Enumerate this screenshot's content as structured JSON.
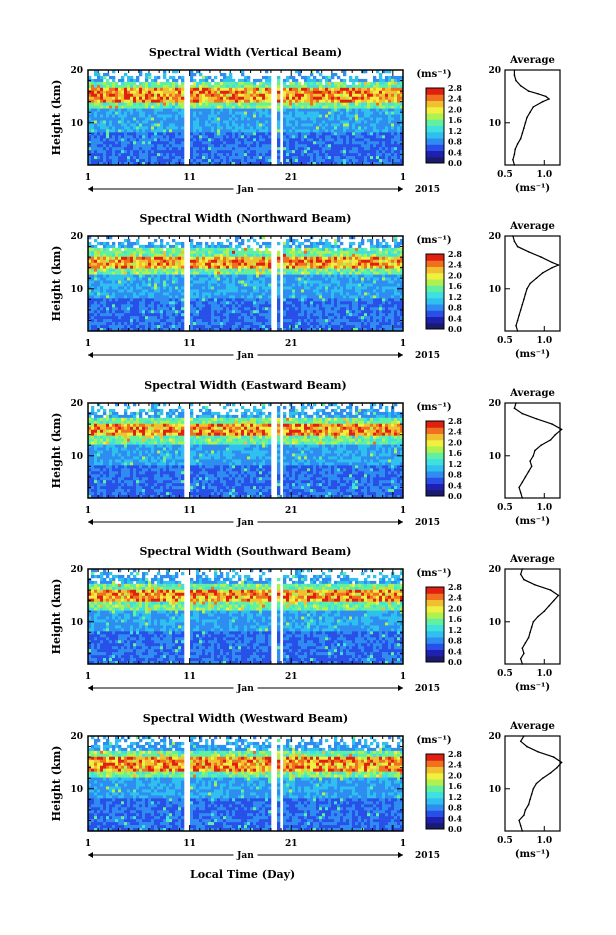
{
  "figure": {
    "bottom_xlabel": "Local Time (Day)",
    "colorbar_unit": "(ms⁻¹)",
    "avg_title": "Average",
    "avg_xlabel": "(ms⁻¹)",
    "ylabel": "Height (km)",
    "month_label": "Jan",
    "year_label": "2015"
  },
  "colors": {
    "colormap": [
      "#1a1a6e",
      "#2020b0",
      "#2850e8",
      "#2f8cf0",
      "#2fc0f0",
      "#40e0e0",
      "#60f0a0",
      "#b0f050",
      "#f0f040",
      "#f0c030",
      "#f07020",
      "#e02010"
    ]
  },
  "chart_data": [
    {
      "type": "heatmap",
      "title": "Spectral Width (Vertical Beam)",
      "ylabel": "Height (km)",
      "xlabel": "Jan",
      "x_tick_labels": [
        "1",
        "11",
        "21",
        "1"
      ],
      "y_tick_labels": [
        "10",
        "20"
      ],
      "ylim": [
        2,
        20
      ],
      "colorbar_ticks": [
        "0.0",
        "0.4",
        "0.8",
        "1.2",
        "1.6",
        "2.0",
        "2.4",
        "2.8"
      ],
      "colorbar_range": [
        0.0,
        2.8
      ],
      "year": "2015",
      "average": {
        "title": "Average",
        "xlabel": "(ms⁻¹)",
        "x_tick_labels": [
          "0.5",
          "1.0"
        ],
        "y_tick_labels": [
          "10",
          "20"
        ],
        "xlim": [
          0.5,
          1.2
        ],
        "profile": [
          [
            0.62,
            2
          ],
          [
            0.6,
            3
          ],
          [
            0.62,
            4
          ],
          [
            0.63,
            5
          ],
          [
            0.66,
            6
          ],
          [
            0.7,
            7
          ],
          [
            0.72,
            8
          ],
          [
            0.74,
            9
          ],
          [
            0.76,
            10
          ],
          [
            0.78,
            11
          ],
          [
            0.82,
            12
          ],
          [
            0.86,
            13
          ],
          [
            0.98,
            14
          ],
          [
            1.06,
            14.5
          ],
          [
            1.02,
            15
          ],
          [
            0.92,
            15.5
          ],
          [
            0.8,
            16
          ],
          [
            0.7,
            17
          ],
          [
            0.64,
            18
          ],
          [
            0.62,
            19
          ],
          [
            0.62,
            20
          ]
        ]
      }
    },
    {
      "type": "heatmap",
      "title": "Spectral Width (Northward Beam)",
      "ylabel": "Height (km)",
      "xlabel": "Jan",
      "x_tick_labels": [
        "1",
        "11",
        "21",
        "1"
      ],
      "y_tick_labels": [
        "10",
        "20"
      ],
      "ylim": [
        2,
        20
      ],
      "colorbar_ticks": [
        "0.0",
        "0.4",
        "0.8",
        "1.2",
        "1.6",
        "2.0",
        "2.4",
        "2.8"
      ],
      "colorbar_range": [
        0.0,
        2.8
      ],
      "year": "2015",
      "average": {
        "title": "Average",
        "xlabel": "(ms⁻¹)",
        "x_tick_labels": [
          "0.5",
          "1.0"
        ],
        "y_tick_labels": [
          "10",
          "20"
        ],
        "xlim": [
          0.5,
          1.2
        ],
        "profile": [
          [
            0.66,
            2
          ],
          [
            0.64,
            3
          ],
          [
            0.66,
            4
          ],
          [
            0.68,
            5
          ],
          [
            0.7,
            6
          ],
          [
            0.72,
            7
          ],
          [
            0.74,
            8
          ],
          [
            0.76,
            9
          ],
          [
            0.78,
            10
          ],
          [
            0.82,
            11
          ],
          [
            0.9,
            12
          ],
          [
            0.98,
            13
          ],
          [
            1.1,
            14
          ],
          [
            1.18,
            14.5
          ],
          [
            1.1,
            15
          ],
          [
            0.96,
            16
          ],
          [
            0.8,
            17
          ],
          [
            0.66,
            18
          ],
          [
            0.62,
            19
          ],
          [
            0.6,
            20
          ]
        ]
      }
    },
    {
      "type": "heatmap",
      "title": "Spectral Width (Eastward Beam)",
      "ylabel": "Height (km)",
      "xlabel": "Jan",
      "x_tick_labels": [
        "1",
        "11",
        "21",
        "1"
      ],
      "y_tick_labels": [
        "10",
        "20"
      ],
      "ylim": [
        2,
        20
      ],
      "colorbar_ticks": [
        "0.0",
        "0.4",
        "0.8",
        "1.2",
        "1.6",
        "2.0",
        "2.4",
        "2.8"
      ],
      "colorbar_range": [
        0.0,
        2.8
      ],
      "year": "2015",
      "average": {
        "title": "Average",
        "xlabel": "(ms⁻¹)",
        "x_tick_labels": [
          "0.5",
          "1.0"
        ],
        "y_tick_labels": [
          "10",
          "20"
        ],
        "xlim": [
          0.5,
          1.2
        ],
        "profile": [
          [
            0.72,
            2
          ],
          [
            0.7,
            3
          ],
          [
            0.68,
            4
          ],
          [
            0.72,
            5
          ],
          [
            0.76,
            6
          ],
          [
            0.8,
            7
          ],
          [
            0.84,
            8
          ],
          [
            0.82,
            9
          ],
          [
            0.86,
            10
          ],
          [
            0.88,
            11
          ],
          [
            0.96,
            12
          ],
          [
            1.08,
            13
          ],
          [
            1.14,
            14
          ],
          [
            1.22,
            15
          ],
          [
            1.1,
            16
          ],
          [
            0.9,
            17
          ],
          [
            0.72,
            18
          ],
          [
            0.62,
            19
          ],
          [
            0.64,
            20
          ]
        ]
      }
    },
    {
      "type": "heatmap",
      "title": "Spectral Width (Southward Beam)",
      "ylabel": "Height (km)",
      "xlabel": "Jan",
      "x_tick_labels": [
        "1",
        "11",
        "21",
        "1"
      ],
      "y_tick_labels": [
        "10",
        "20"
      ],
      "ylim": [
        2,
        20
      ],
      "colorbar_ticks": [
        "0.0",
        "0.4",
        "0.8",
        "1.2",
        "1.6",
        "2.0",
        "2.4",
        "2.8"
      ],
      "colorbar_range": [
        0.0,
        2.8
      ],
      "year": "2015",
      "average": {
        "title": "Average",
        "xlabel": "(ms⁻¹)",
        "x_tick_labels": [
          "0.5",
          "1.0"
        ],
        "y_tick_labels": [
          "10",
          "20"
        ],
        "xlim": [
          0.5,
          1.2
        ],
        "profile": [
          [
            0.72,
            2
          ],
          [
            0.7,
            3
          ],
          [
            0.74,
            4
          ],
          [
            0.72,
            5
          ],
          [
            0.76,
            6
          ],
          [
            0.8,
            7
          ],
          [
            0.82,
            8
          ],
          [
            0.84,
            9
          ],
          [
            0.86,
            10
          ],
          [
            0.92,
            11
          ],
          [
            1.0,
            12
          ],
          [
            1.06,
            13
          ],
          [
            1.12,
            14
          ],
          [
            1.18,
            15
          ],
          [
            1.08,
            16
          ],
          [
            0.88,
            17
          ],
          [
            0.74,
            18
          ],
          [
            0.7,
            19
          ],
          [
            0.72,
            20
          ]
        ]
      }
    },
    {
      "type": "heatmap",
      "title": "Spectral Width (Westward Beam)",
      "ylabel": "Height (km)",
      "xlabel": "Jan",
      "x_tick_labels": [
        "1",
        "11",
        "21",
        "1"
      ],
      "y_tick_labels": [
        "10",
        "20"
      ],
      "ylim": [
        2,
        20
      ],
      "colorbar_ticks": [
        "0.0",
        "0.4",
        "0.8",
        "1.2",
        "1.6",
        "2.0",
        "2.4",
        "2.8"
      ],
      "colorbar_range": [
        0.0,
        2.8
      ],
      "year": "2015",
      "average": {
        "title": "Average",
        "xlabel": "(ms⁻¹)",
        "x_tick_labels": [
          "0.5",
          "1.0"
        ],
        "y_tick_labels": [
          "10",
          "20"
        ],
        "xlim": [
          0.5,
          1.2
        ],
        "profile": [
          [
            0.72,
            2
          ],
          [
            0.7,
            3
          ],
          [
            0.68,
            4
          ],
          [
            0.74,
            5
          ],
          [
            0.76,
            6
          ],
          [
            0.8,
            7
          ],
          [
            0.82,
            8
          ],
          [
            0.84,
            9
          ],
          [
            0.86,
            10
          ],
          [
            0.9,
            11
          ],
          [
            0.98,
            12
          ],
          [
            1.08,
            13
          ],
          [
            1.16,
            14
          ],
          [
            1.22,
            15
          ],
          [
            1.12,
            16
          ],
          [
            0.92,
            17
          ],
          [
            0.78,
            18
          ],
          [
            0.7,
            19
          ],
          [
            0.74,
            20
          ]
        ]
      }
    }
  ]
}
